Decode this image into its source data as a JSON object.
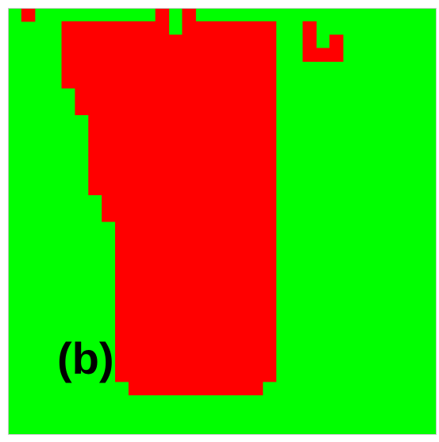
{
  "panel_label": "(b)",
  "colors": {
    "phase_a": "#00ff00",
    "phase_b": "#ff0000",
    "border": "#c8c8c8"
  },
  "grid": {
    "cols": 32,
    "rows": 32,
    "cells": [
      "01000000000101000000000000000000",
      "00001111111101111111001000000000",
      "00001111111111111111001010000000",
      "00001111111111111111001110000000",
      "00001111111111111111000000000000",
      "00001111111111111111000000000000",
      "00000111111111111111000000000000",
      "00000111111111111111000000000000",
      "00000011111111111111000000000000",
      "00000011111111111111000000000000",
      "00000011111111111111000000000000",
      "00000011111111111111000000000000",
      "00000011111111111111000000000000",
      "00000011111111111111000000000000",
      "00000001111111111111000000000000",
      "00000001111111111111000000000000",
      "00000000111111111111000000000000",
      "00000000111111111111000000000000",
      "00000000111111111111000000000000",
      "00000000111111111111000000000000",
      "00000000111111111111000000000000",
      "00000000111111111111000000000000",
      "00000000111111111111000000000000",
      "00000000111111111111000000000000",
      "00000000111111111111000000000000",
      "00000000111111111111000000000000",
      "00000000111111111111000000000000",
      "00000000111111111111000000000000",
      "00000000011111111110000000000000",
      "00000000000000000000000000000000",
      "00000000000000000000000000000000",
      "00000000000000000000000000000000"
    ]
  }
}
